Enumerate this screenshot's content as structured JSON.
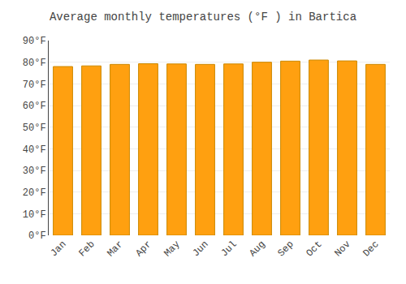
{
  "chart_data": {
    "type": "bar",
    "title": "Average monthly temperatures (°F ) in Bartica",
    "categories": [
      "Jan",
      "Feb",
      "Mar",
      "Apr",
      "May",
      "Jun",
      "Jul",
      "Aug",
      "Sep",
      "Oct",
      "Nov",
      "Dec"
    ],
    "values": [
      78.0,
      78.3,
      79.0,
      79.3,
      79.2,
      79.0,
      79.2,
      80.0,
      80.5,
      81.0,
      80.6,
      79.0
    ],
    "color": "#FFA010",
    "ylim": [
      0,
      90
    ],
    "yticks": [
      {
        "value": 0,
        "label": "0°F"
      },
      {
        "value": 10,
        "label": "10°F"
      },
      {
        "value": 20,
        "label": "20°F"
      },
      {
        "value": 30,
        "label": "30°F"
      },
      {
        "value": 40,
        "label": "40°F"
      },
      {
        "value": 50,
        "label": "50°F"
      },
      {
        "value": 60,
        "label": "60°F"
      },
      {
        "value": 70,
        "label": "70°F"
      },
      {
        "value": 80,
        "label": "80°F"
      },
      {
        "value": 90,
        "label": "90°F"
      }
    ],
    "grid": true
  }
}
